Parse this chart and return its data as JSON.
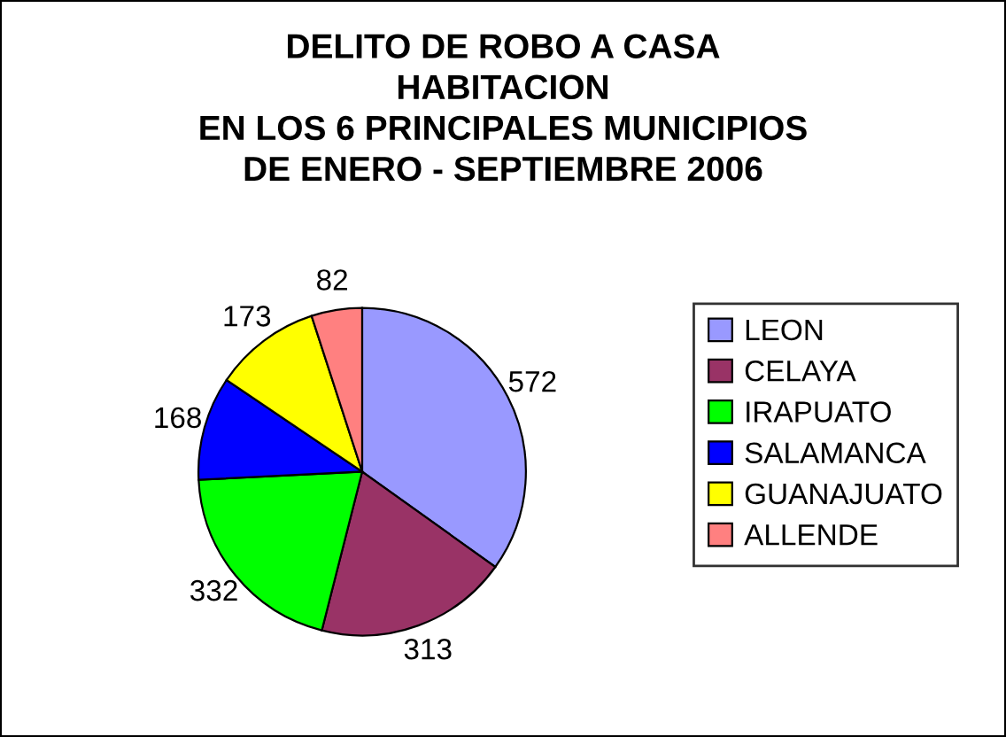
{
  "chart_data": {
    "type": "pie",
    "title": "DELITO DE ROBO A CASA\nHABITACION\nEN LOS 6 PRINCIPALES MUNICIPIOS\nDE ENERO - SEPTIEMBRE 2006",
    "categories": [
      "LEON",
      "CELAYA",
      "IRAPUATO",
      "SALAMANCA",
      "GUANAJUATO",
      "ALLENDE"
    ],
    "values": [
      572,
      313,
      332,
      168,
      173,
      82
    ],
    "colors": [
      "#9999ff",
      "#993366",
      "#00ff00",
      "#0000ff",
      "#ffff00",
      "#ff8080"
    ],
    "data_labels": true,
    "legend": "right"
  }
}
